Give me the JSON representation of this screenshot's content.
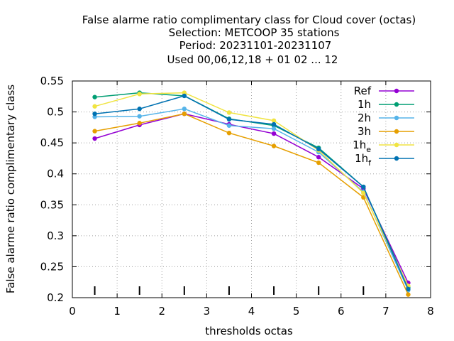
{
  "chart_data": {
    "type": "line",
    "title_lines": [
      "False alarme ratio complimentary class  for Cloud cover (octas)",
      "Selection: METCOOP     35 stations",
      "Period: 20231101-20231107",
      "Used  00,06,12,18 + 01 02 ... 12"
    ],
    "xlabel": "thresholds octas",
    "ylabel": "False alarme ratio complimentary class",
    "xlim": [
      0,
      8
    ],
    "ylim": [
      0.2,
      0.55
    ],
    "xticks": [
      "0",
      "1",
      "2",
      "3",
      "4",
      "5",
      "6",
      "7",
      "8"
    ],
    "yticks": [
      "0.2",
      "0.25",
      "0.3",
      "0.35",
      "0.4",
      "0.45",
      "0.5",
      "0.55"
    ],
    "grid": true,
    "legend_position": "top-right",
    "x": [
      0.5,
      1.5,
      2.5,
      3.5,
      4.5,
      5.5,
      6.5,
      7.5
    ],
    "series": [
      {
        "name": "Ref",
        "name_sub": "",
        "color": "#9400d3",
        "values": [
          0.457,
          0.479,
          0.497,
          0.48,
          0.465,
          0.427,
          0.376,
          0.224
        ]
      },
      {
        "name": "1h",
        "name_sub": "",
        "color": "#009e73",
        "values": [
          0.524,
          0.531,
          0.526,
          0.489,
          0.478,
          0.442,
          0.379,
          0.217
        ]
      },
      {
        "name": "2h",
        "name_sub": "",
        "color": "#56b4e9",
        "values": [
          0.492,
          0.493,
          0.505,
          0.478,
          0.473,
          0.435,
          0.371,
          0.212
        ]
      },
      {
        "name": "3h",
        "name_sub": "",
        "color": "#e69f00",
        "values": [
          0.469,
          0.482,
          0.497,
          0.466,
          0.445,
          0.418,
          0.362,
          0.205
        ]
      },
      {
        "name": "1h",
        "name_sub": "e",
        "color": "#f0e442",
        "values": [
          0.509,
          0.529,
          0.531,
          0.499,
          0.486,
          0.438,
          0.369,
          0.219
        ]
      },
      {
        "name": "1h",
        "name_sub": "f",
        "color": "#0072b2",
        "values": [
          0.497,
          0.505,
          0.526,
          0.488,
          0.48,
          0.44,
          0.379,
          0.214
        ]
      }
    ],
    "threshold_markers_x": [
      0.5,
      1.5,
      2.5,
      3.5,
      4.5,
      5.5,
      6.5,
      7.5
    ]
  }
}
